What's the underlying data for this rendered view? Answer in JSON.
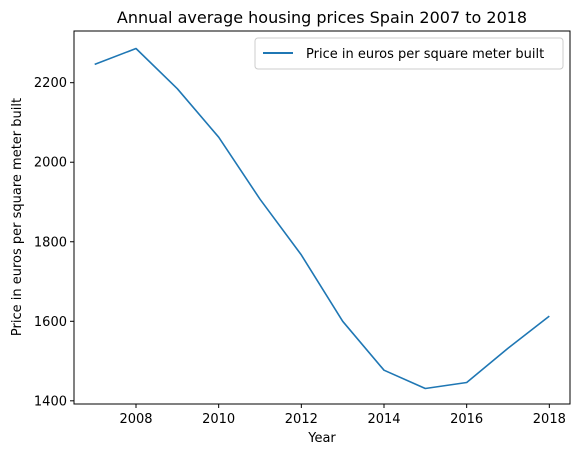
{
  "chart_data": {
    "type": "line",
    "title": "Annual average housing prices Spain 2007 to 2018",
    "xlabel": "Year",
    "ylabel": "Price in euros per square meter built",
    "xlim": [
      2006.5,
      2018.5
    ],
    "ylim": [
      1392,
      2330
    ],
    "x_ticks": [
      2008,
      2010,
      2012,
      2014,
      2016,
      2018
    ],
    "y_ticks": [
      1400,
      1600,
      1800,
      2000,
      2200
    ],
    "grid": false,
    "legend_position": "top-right",
    "series": [
      {
        "name": "Price in euros per square meter built",
        "color": "#1f77b4",
        "x": [
          2007,
          2008,
          2009,
          2010,
          2011,
          2012,
          2013,
          2014,
          2015,
          2016,
          2017,
          2018
        ],
        "values": [
          2246,
          2286,
          2185,
          2063,
          1907,
          1767,
          1600,
          1477,
          1431,
          1446,
          1532,
          1613
        ]
      }
    ]
  }
}
